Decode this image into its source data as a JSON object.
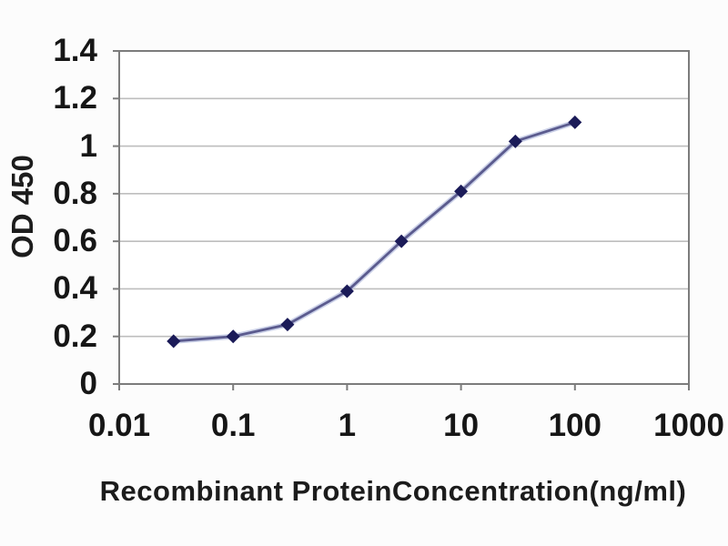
{
  "chart_data": {
    "type": "line",
    "title": "",
    "xlabel": "Recombinant ProteinConcentration(ng/ml)",
    "ylabel": "OD 450",
    "x_scale": "log",
    "xlim": [
      0.01,
      1000
    ],
    "ylim": [
      0,
      1.4
    ],
    "x_ticks": [
      0.01,
      0.1,
      1,
      10,
      100,
      1000
    ],
    "x_tick_labels": [
      "0.01",
      "0.1",
      "1",
      "10",
      "100",
      "1000"
    ],
    "y_ticks": [
      0,
      0.2,
      0.4,
      0.6,
      0.8,
      1,
      1.2,
      1.4
    ],
    "y_tick_labels": [
      "0",
      "0.2",
      "0.4",
      "0.6",
      "0.8",
      "1",
      "1.2",
      "1.4"
    ],
    "grid": "horizontal",
    "legend": "none",
    "series": [
      {
        "name": "OD 450",
        "marker": "diamond",
        "x": [
          0.03,
          0.1,
          0.3,
          1,
          3,
          10,
          30,
          100
        ],
        "y": [
          0.18,
          0.2,
          0.25,
          0.39,
          0.6,
          0.81,
          1.02,
          1.1
        ]
      }
    ],
    "colors": {
      "line": "#5b5b8e",
      "line_halo": "#b9c2e0",
      "marker": "#1b1b58",
      "grid": "#bebebe",
      "border": "#7c7c7c",
      "text": "#161616",
      "background": "#fcfcfc"
    }
  }
}
